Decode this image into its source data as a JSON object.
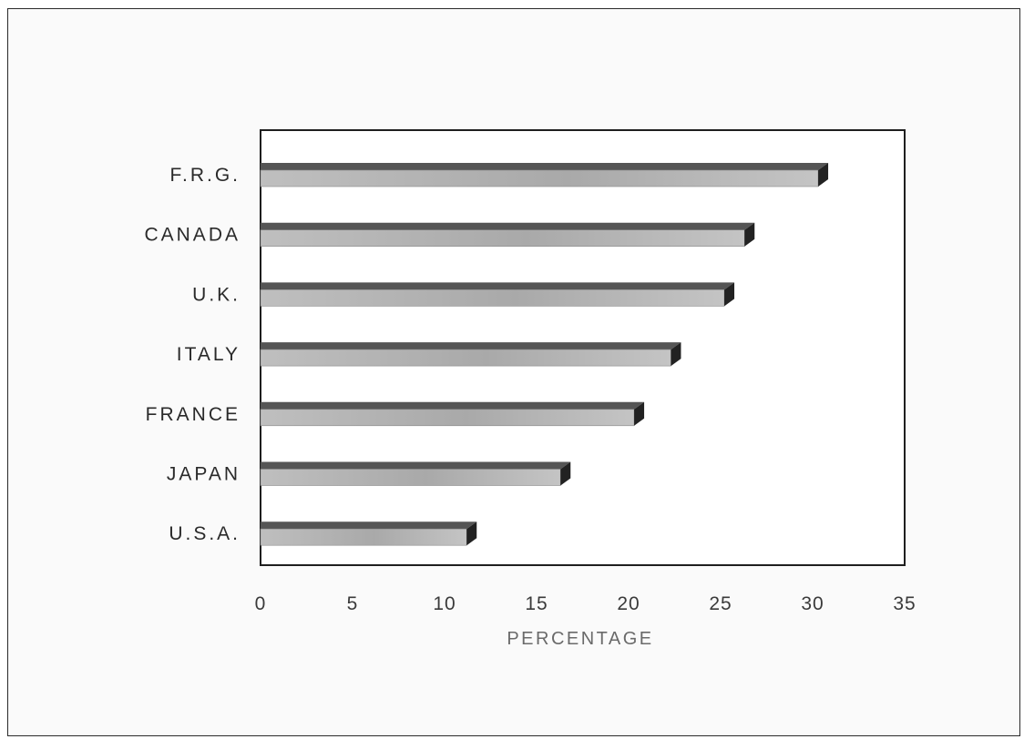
{
  "chart_data": {
    "type": "bar",
    "orientation": "horizontal",
    "title": "",
    "xlabel": "PERCENTAGE",
    "ylabel": "",
    "categories": [
      "F.R.G.",
      "CANADA",
      "U.K.",
      "ITALY",
      "FRANCE",
      "JAPAN",
      "U.S.A."
    ],
    "values": [
      30.3,
      26.3,
      25.2,
      22.3,
      20.3,
      16.3,
      11.2
    ],
    "xlim": [
      0,
      35
    ],
    "xticks": [
      "0",
      "5",
      "10",
      "15",
      "20",
      "25",
      "30",
      "35"
    ],
    "grid": false,
    "legend": "none",
    "bar_style": "3d",
    "colors": {
      "bar_top": "#555555",
      "bar_face": "#b4b4b4",
      "bar_end": "#222222",
      "axis": "#1e1e1e"
    }
  }
}
